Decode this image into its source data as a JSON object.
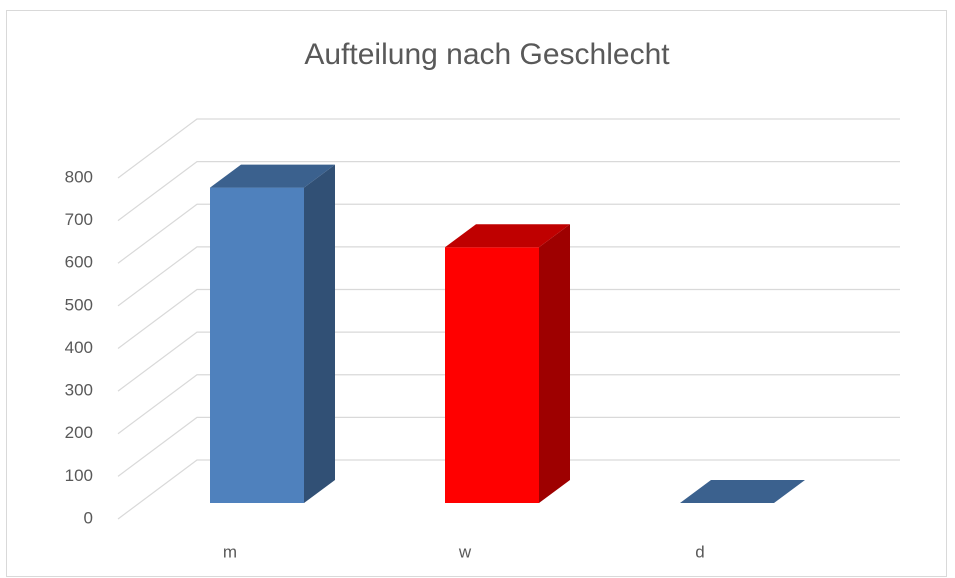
{
  "chart_data": {
    "type": "bar3d",
    "title": "Aufteilung nach Geschlecht",
    "categories": [
      "m",
      "w",
      "d"
    ],
    "values": [
      740,
      600,
      0
    ],
    "colors": [
      "#4f81bd",
      "#ff0000",
      "#4f81bd"
    ],
    "ylim": [
      0,
      800
    ],
    "yticks": [
      0,
      100,
      200,
      300,
      400,
      500,
      600,
      700,
      800
    ],
    "grid": true
  }
}
